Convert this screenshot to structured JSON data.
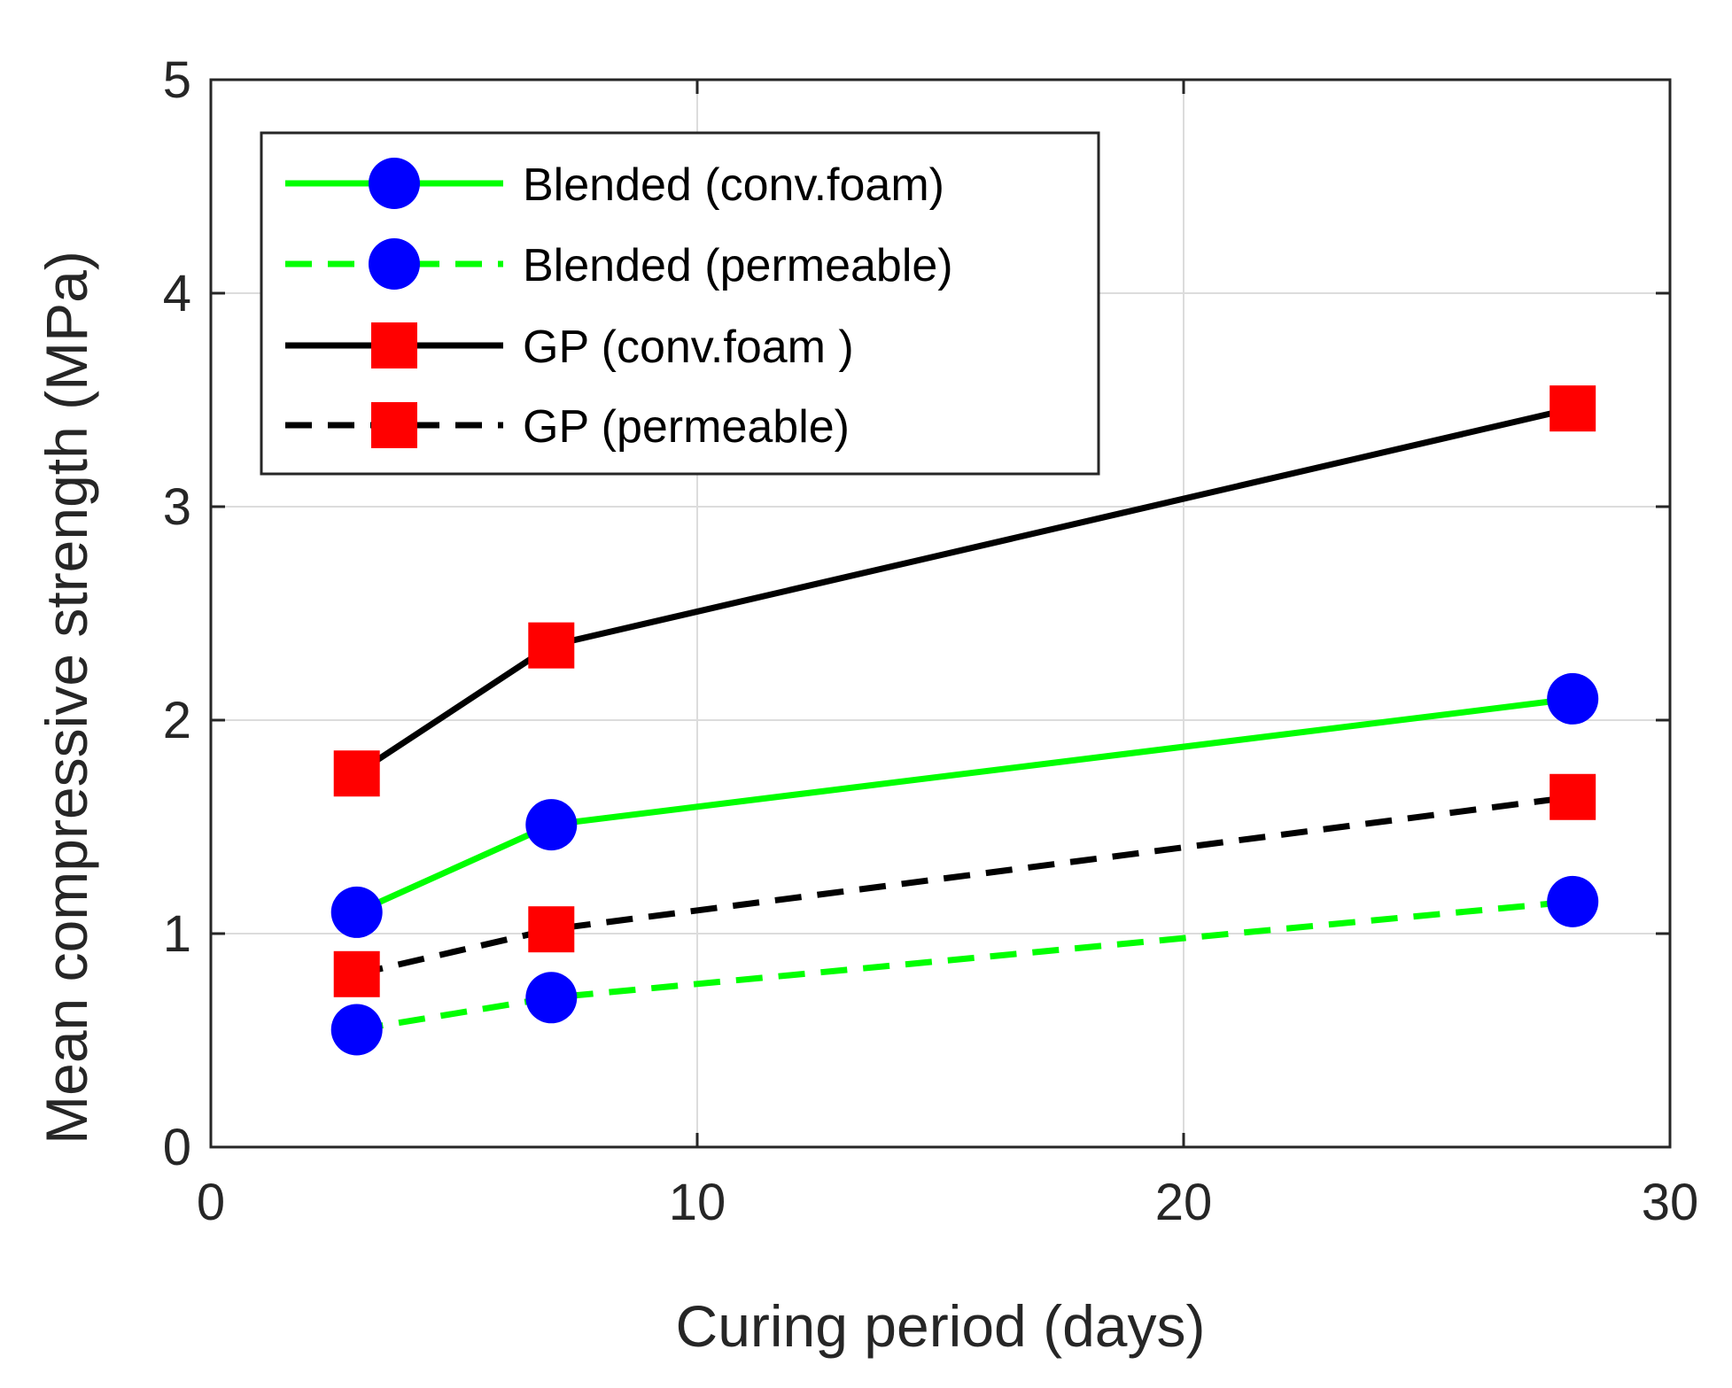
{
  "chart_data": {
    "type": "line",
    "xlabel": "Curing period (days)",
    "ylabel": "Mean compressive strength (MPa)",
    "xlim": [
      0,
      30
    ],
    "ylim": [
      0,
      5
    ],
    "xticks": [
      0,
      10,
      20,
      30
    ],
    "yticks": [
      0,
      1,
      2,
      3,
      4,
      5
    ],
    "grid": true,
    "legend_position": "top-left",
    "x": [
      3,
      7,
      28
    ],
    "series": [
      {
        "name": "Blended (conv.foam)",
        "values": [
          1.1,
          1.51,
          2.1
        ],
        "line_color": "#00ff00",
        "line_style": "solid",
        "marker": "circle",
        "marker_color": "#0000ff"
      },
      {
        "name": "Blended (permeable)",
        "values": [
          0.55,
          0.7,
          1.15
        ],
        "line_color": "#00ff00",
        "line_style": "dashed",
        "marker": "circle",
        "marker_color": "#0000ff"
      },
      {
        "name": "GP (conv.foam )",
        "values": [
          1.75,
          2.35,
          3.46
        ],
        "line_color": "#000000",
        "line_style": "solid",
        "marker": "square",
        "marker_color": "#ff0000"
      },
      {
        "name": "GP (permeable)",
        "values": [
          0.81,
          1.02,
          1.64
        ],
        "line_color": "#000000",
        "line_style": "dashed",
        "marker": "square",
        "marker_color": "#ff0000"
      }
    ]
  }
}
